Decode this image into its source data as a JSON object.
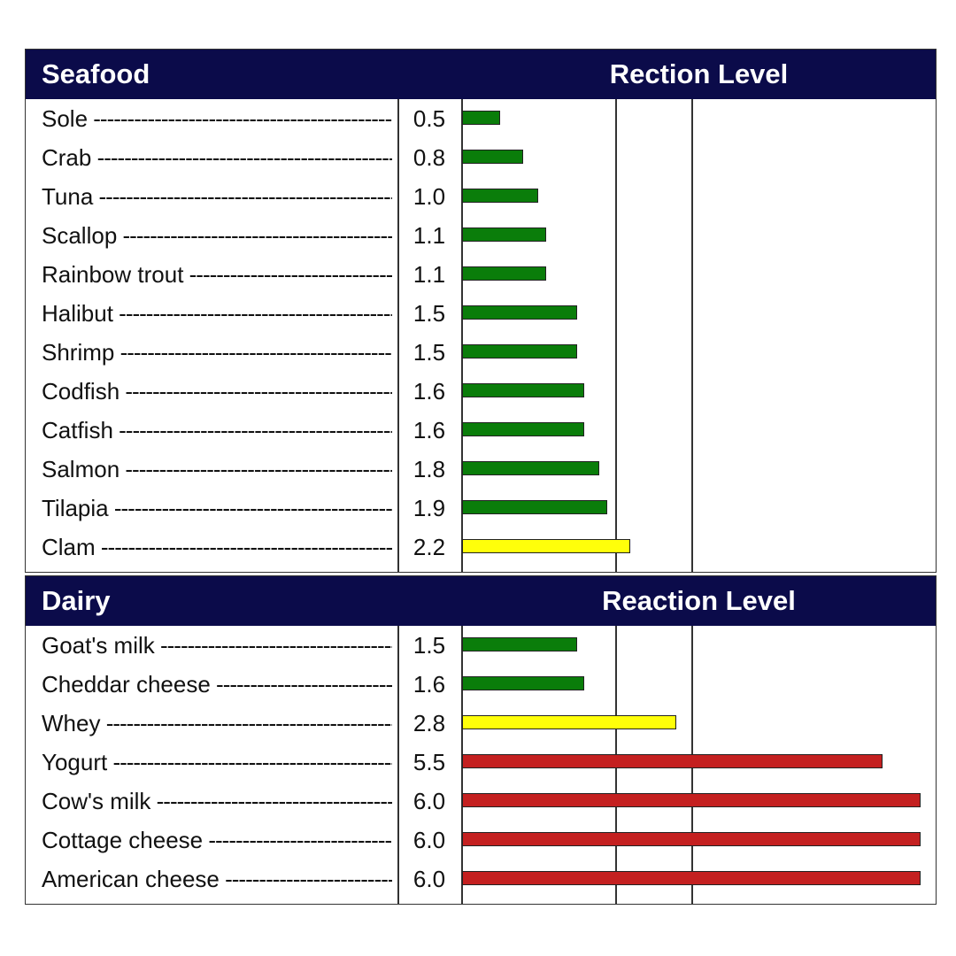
{
  "colors": {
    "header_bg": "#0b0b4a",
    "green": "#0a7d0a",
    "yellow": "#ffff0a",
    "red": "#c42020"
  },
  "chart_data": [
    {
      "type": "bar",
      "orientation": "horizontal",
      "title": "Seafood",
      "value_column_title": "Rection Level",
      "xlim": [
        0,
        6.0
      ],
      "gridlines": [
        2.0,
        3.0
      ],
      "categories": [
        "Sole",
        "Crab",
        "Tuna",
        "Scallop",
        "Rainbow trout",
        "Halibut",
        "Shrimp",
        "Codfish",
        "Catfish",
        "Salmon",
        "Tilapia",
        "Clam"
      ],
      "values": [
        0.5,
        0.8,
        1.0,
        1.1,
        1.1,
        1.5,
        1.5,
        1.6,
        1.6,
        1.8,
        1.9,
        2.2
      ],
      "value_labels": [
        "0.5",
        "0.8",
        "1.0",
        "1.1",
        "1.1",
        "1.5",
        "1.5",
        "1.6",
        "1.6",
        "1.8",
        "1.9",
        "2.2"
      ],
      "bar_colors": [
        "#0a7d0a",
        "#0a7d0a",
        "#0a7d0a",
        "#0a7d0a",
        "#0a7d0a",
        "#0a7d0a",
        "#0a7d0a",
        "#0a7d0a",
        "#0a7d0a",
        "#0a7d0a",
        "#0a7d0a",
        "#ffff0a"
      ]
    },
    {
      "type": "bar",
      "orientation": "horizontal",
      "title": "Dairy",
      "value_column_title": "Reaction Level",
      "xlim": [
        0,
        6.0
      ],
      "gridlines": [
        2.0,
        3.0
      ],
      "categories": [
        "Goat's milk",
        "Cheddar cheese",
        "Whey",
        "Yogurt",
        "Cow's milk",
        "Cottage cheese",
        "American cheese"
      ],
      "values": [
        1.5,
        1.6,
        2.8,
        5.5,
        6.0,
        6.0,
        6.0
      ],
      "value_labels": [
        "1.5",
        "1.6",
        "2.8",
        "5.5",
        "6.0",
        "6.0",
        "6.0"
      ],
      "bar_colors": [
        "#0a7d0a",
        "#0a7d0a",
        "#ffff0a",
        "#c42020",
        "#c42020",
        "#c42020",
        "#c42020"
      ]
    }
  ]
}
